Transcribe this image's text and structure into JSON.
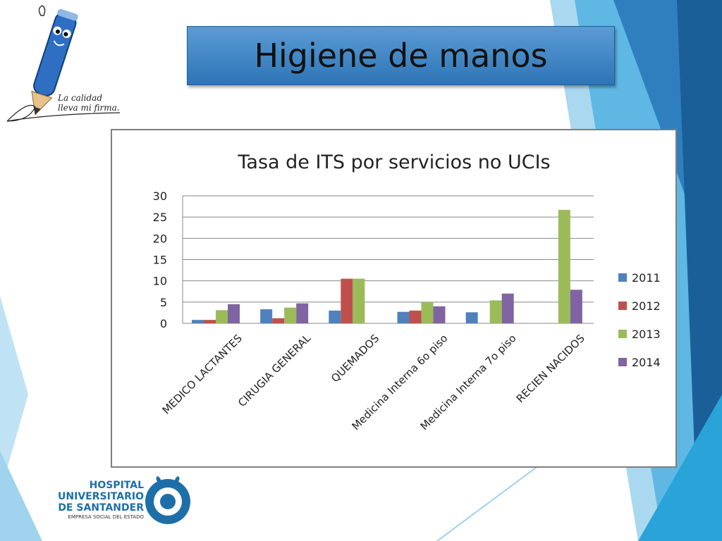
{
  "slide": {
    "title": "Higiene de manos",
    "tagline_line1": "La calidad",
    "tagline_line2": "lleva mi firma.",
    "hospital_line1": "HOSPITAL",
    "hospital_line2": "UNIVERSITARIO",
    "hospital_line3": "DE SANTANDER",
    "hospital_sub": "EMPRESA SOCIAL DEL ESTADO"
  },
  "colors": {
    "2011": "#4f81bd",
    "2012": "#c0504d",
    "2013": "#9bbb59",
    "2014": "#8064a2",
    "title_banner": "#4f90cf",
    "accent_blue": "#1e6fa8"
  },
  "chart_data": {
    "type": "bar",
    "title": "Tasa de ITS por servicios no UCIs",
    "categories": [
      "MEDICO LACTANTES",
      "CIRUGIA GENERAL",
      "QUEMADOS",
      "Medicina Interna 6o piso",
      "Medicina Interna 7o piso",
      "RECIEN NACIDOS"
    ],
    "series": [
      {
        "name": "2011",
        "values": [
          0.8,
          3.3,
          3.0,
          2.7,
          2.6,
          0
        ]
      },
      {
        "name": "2012",
        "values": [
          0.8,
          1.2,
          10.5,
          3.0,
          0,
          0
        ]
      },
      {
        "name": "2013",
        "values": [
          3.1,
          3.7,
          10.5,
          5.0,
          5.4,
          26.7
        ]
      },
      {
        "name": "2014",
        "values": [
          4.5,
          4.7,
          0,
          4.0,
          7.0,
          7.9
        ]
      }
    ],
    "ylim": [
      0,
      30
    ],
    "yticks": [
      "0",
      "5",
      "10",
      "15",
      "20",
      "25",
      "30"
    ],
    "grid": true,
    "legend": "right",
    "xlabel": "",
    "ylabel": ""
  }
}
